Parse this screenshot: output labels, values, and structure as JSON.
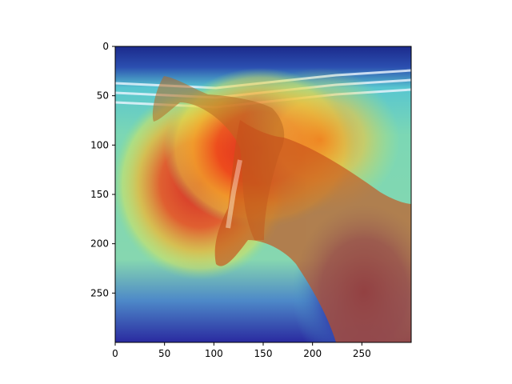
{
  "chart_data": {
    "type": "heatmap",
    "description": "Image of two horses with Grad-CAM style jet heatmap overlay",
    "xlim": [
      0,
      300
    ],
    "ylim": [
      300,
      0
    ],
    "x_ticks": [
      0,
      50,
      100,
      150,
      200,
      250
    ],
    "y_ticks": [
      0,
      50,
      100,
      150,
      200,
      250
    ],
    "x_tick_labels": [
      "0",
      "50",
      "100",
      "150",
      "200",
      "250"
    ],
    "y_tick_labels": [
      "0",
      "50",
      "100",
      "150",
      "200",
      "250"
    ],
    "colormap": "jet",
    "hotspots": [
      {
        "x": 75,
        "y": 145,
        "intensity": 1.0
      },
      {
        "x": 145,
        "y": 110,
        "intensity": 0.95
      },
      {
        "x": 200,
        "y": 100,
        "intensity": 0.75
      },
      {
        "x": 230,
        "y": 110,
        "intensity": 0.6
      }
    ],
    "title": "",
    "xlabel": "",
    "ylabel": ""
  }
}
